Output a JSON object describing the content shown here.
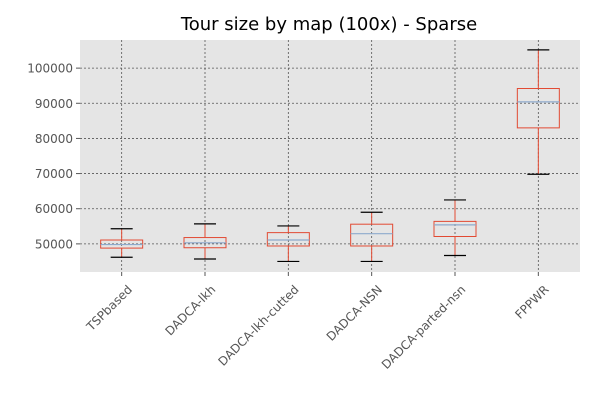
{
  "chart_data": {
    "type": "box",
    "title": "Tour size by map (100x) - Sparse",
    "categories": [
      "TSPbased",
      "DADCA-lkh",
      "DADCA-lkh-cutted",
      "DADCA-NSN",
      "DADCA-parted-nsn",
      "FPPWR"
    ],
    "boxes": [
      {
        "whisker_low": 46200,
        "q1": 48800,
        "median": 49800,
        "q3": 51100,
        "whisker_high": 54300
      },
      {
        "whisker_low": 45700,
        "q1": 48900,
        "median": 50300,
        "q3": 51800,
        "whisker_high": 55700
      },
      {
        "whisker_low": 45000,
        "q1": 49400,
        "median": 51100,
        "q3": 53200,
        "whisker_high": 55100
      },
      {
        "whisker_low": 45000,
        "q1": 49400,
        "median": 52900,
        "q3": 55600,
        "whisker_high": 59000
      },
      {
        "whisker_low": 46700,
        "q1": 52100,
        "median": 55400,
        "q3": 56400,
        "whisker_high": 62500
      },
      {
        "whisker_low": 69800,
        "q1": 83000,
        "median": 90400,
        "q3": 94200,
        "whisker_high": 105200
      }
    ],
    "ylim": [
      42000,
      108000
    ],
    "yticks": [
      50000,
      60000,
      70000,
      80000,
      90000,
      100000
    ],
    "ytick_labels": [
      "50000",
      "60000",
      "70000",
      "80000",
      "90000",
      "100000"
    ],
    "grid": true,
    "colors": {
      "plot_background": "#e5e5e5",
      "grid": "#555555",
      "box": "#e24a33",
      "median": "#8eaacc",
      "whisker": "#e24a33",
      "cap": "#000000",
      "text": "#000000",
      "tick_label": "#555555"
    }
  }
}
